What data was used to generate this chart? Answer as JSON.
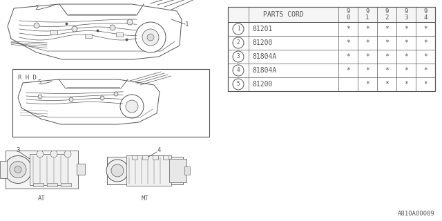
{
  "bg_color": "#ffffff",
  "lc": "#555555",
  "lc_dark": "#333333",
  "table": {
    "header": "PARTS CORD",
    "year_cols": [
      [
        "9",
        "0"
      ],
      [
        "9",
        "1"
      ],
      [
        "9",
        "2"
      ],
      [
        "9",
        "3"
      ],
      [
        "9",
        "4"
      ]
    ],
    "rows": [
      {
        "num": "1",
        "part": "81201",
        "marks": [
          "*",
          "*",
          "*",
          "*",
          "*"
        ]
      },
      {
        "num": "2",
        "part": "81200",
        "marks": [
          "*",
          "*",
          "*",
          "*",
          "*"
        ]
      },
      {
        "num": "3",
        "part": "81804A",
        "marks": [
          "*",
          "*",
          "*",
          "*",
          "*"
        ]
      },
      {
        "num": "4",
        "part": "81804A",
        "marks": [
          "*",
          "*",
          "*",
          "*",
          "*"
        ]
      },
      {
        "num": "5",
        "part": "81200",
        "marks": [
          "",
          "*",
          "*",
          "*",
          "*"
        ]
      }
    ]
  },
  "footer": "A810A00089",
  "rhd_label": "R H D",
  "at_label": "AT",
  "mt_label": "MT",
  "fs_table": 7,
  "fs_label": 6.5,
  "fs_footer": 6.5,
  "fs_num": 5.5
}
